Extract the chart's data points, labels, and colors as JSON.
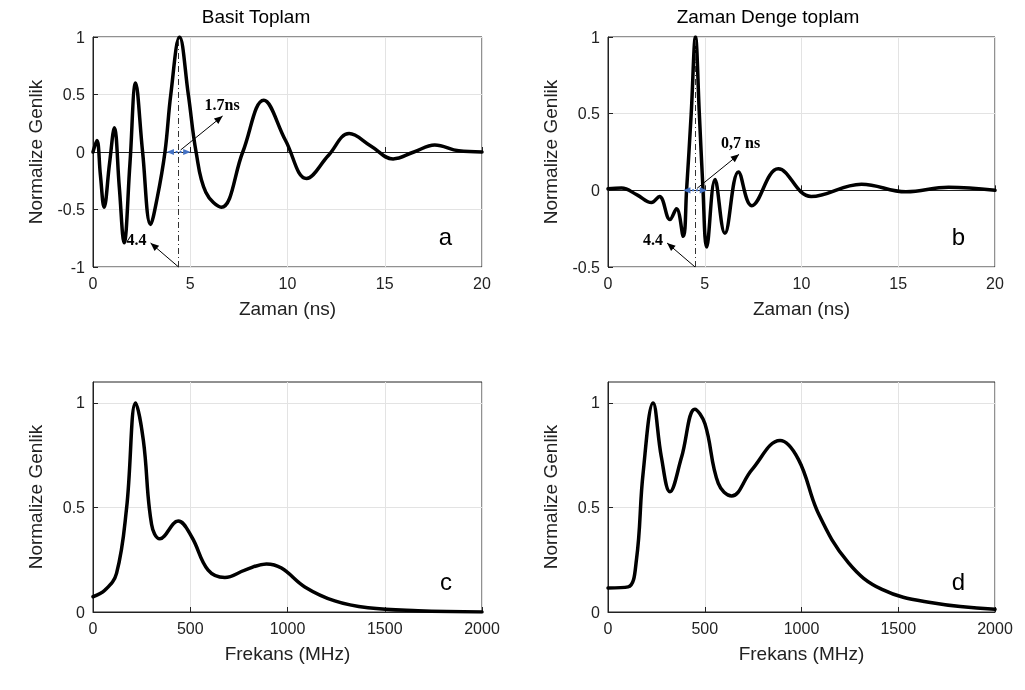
{
  "chart_data": [
    {
      "type": "line",
      "title": "Basit Toplam",
      "xlabel": "Zaman (ns)",
      "ylabel": "Normalize Genlik",
      "xlim": [
        0,
        20
      ],
      "xticks": [
        0,
        5,
        10,
        15,
        20
      ],
      "ylim": [
        -1,
        1
      ],
      "yticks": [
        -1,
        -0.5,
        0,
        0.5,
        1
      ],
      "grid": true,
      "series": [
        {
          "color": "#000000",
          "x": [
            0,
            0.2,
            0.38,
            0.57,
            0.85,
            1.1,
            1.35,
            1.6,
            1.9,
            2.19,
            2.55,
            2.96,
            3.3,
            3.7,
            4.0,
            4.45,
            4.9,
            5.3,
            5.8,
            6.6,
            7.7,
            8.78,
            9.9,
            10.98,
            12.1,
            13.17,
            14.3,
            15.43,
            16.5,
            17.57,
            18.8,
            20
          ],
          "values": [
            0,
            0.1,
            -0.2,
            -0.48,
            -0.1,
            0.21,
            -0.3,
            -0.79,
            -0.1,
            0.6,
            0,
            -0.63,
            -0.4,
            0,
            0.5,
            1,
            0.5,
            0,
            -0.35,
            -0.48,
            0,
            0.45,
            0.1,
            -0.23,
            -0.03,
            0.16,
            0.05,
            -0.06,
            0,
            0.06,
            0.01,
            0
          ]
        }
      ],
      "ref_lines": [
        {
          "axis": "x",
          "value": 4.4,
          "line_style": "dashed"
        }
      ],
      "annotations": [
        {
          "text": "1.7ns",
          "x": 4.4,
          "y": 0
        },
        "4.4",
        "a"
      ]
    },
    {
      "type": "line",
      "title": "Zaman Denge toplam",
      "xlabel": "Zaman (ns)",
      "ylabel": "Normalize Genlik",
      "xlim": [
        0,
        20
      ],
      "xticks": [
        0,
        5,
        10,
        15,
        20
      ],
      "ylim": [
        -0.5,
        1
      ],
      "yticks": [
        -0.5,
        0,
        0.5,
        1
      ],
      "grid": true,
      "series": [
        {
          "color": "#000000",
          "x": [
            0,
            0.7,
            1.5,
            2.25,
            2.66,
            3.2,
            3.54,
            3.89,
            4.06,
            4.3,
            4.52,
            4.72,
            4.9,
            5.1,
            5.53,
            6.04,
            6.74,
            7.43,
            8.8,
            10.5,
            13.1,
            15.4,
            17.6,
            20
          ],
          "values": [
            0.01,
            0.015,
            -0.03,
            -0.08,
            -0.04,
            -0.19,
            -0.12,
            -0.3,
            0,
            0.5,
            1,
            0.5,
            0.03,
            -0.37,
            0.07,
            -0.28,
            0.12,
            -0.1,
            0.14,
            -0.04,
            0.04,
            -0.01,
            0.02,
            0
          ]
        }
      ],
      "ref_lines": [
        {
          "axis": "x",
          "value": 4.5,
          "line_style": "dashed"
        }
      ],
      "annotations": [
        {
          "text": "0,7 ns",
          "x": 4.5,
          "y": 0
        },
        "4.4",
        "b"
      ]
    },
    {
      "type": "line",
      "xlabel": "Frekans (MHz)",
      "ylabel": "Normalize Genlik",
      "xlim": [
        0,
        2000
      ],
      "xticks": [
        0,
        500,
        1000,
        1500,
        2000
      ],
      "ylim": [
        0,
        1.1
      ],
      "yticks": [
        0,
        0.5,
        1
      ],
      "grid": true,
      "series": [
        {
          "color": "#000000",
          "x": [
            0,
            62,
            121,
            173,
            219,
            259,
            301,
            344,
            438,
            507,
            592,
            678,
            781,
            892,
            969,
            1089,
            1243,
            1414,
            1671,
            2000
          ],
          "values": [
            0.073,
            0.105,
            0.185,
            0.5,
            1,
            0.82,
            0.42,
            0.35,
            0.435,
            0.36,
            0.2,
            0.165,
            0.2,
            0.23,
            0.21,
            0.12,
            0.053,
            0.02,
            0.006,
            0
          ]
        }
      ],
      "annotations": [
        "c"
      ]
    },
    {
      "type": "line",
      "xlabel": "Frekans (MHz)",
      "ylabel": "Normalize Genlik",
      "xlim": [
        0,
        2000
      ],
      "xticks": [
        0,
        500,
        1000,
        1500,
        2000
      ],
      "ylim": [
        0,
        1.1
      ],
      "yticks": [
        0,
        0.5,
        1
      ],
      "grid": true,
      "series": [
        {
          "color": "#000000",
          "x": [
            0,
            104,
            147,
            181,
            233,
            276,
            320,
            380,
            449,
            501,
            570,
            639,
            743,
            889,
            984,
            1088,
            1243,
            1416,
            1675,
            2000
          ],
          "values": [
            0.115,
            0.12,
            0.25,
            0.66,
            1,
            0.74,
            0.575,
            0.74,
            0.97,
            0.9,
            0.615,
            0.555,
            0.68,
            0.82,
            0.73,
            0.47,
            0.235,
            0.108,
            0.044,
            0.013
          ]
        }
      ],
      "annotations": [
        "d"
      ]
    }
  ]
}
